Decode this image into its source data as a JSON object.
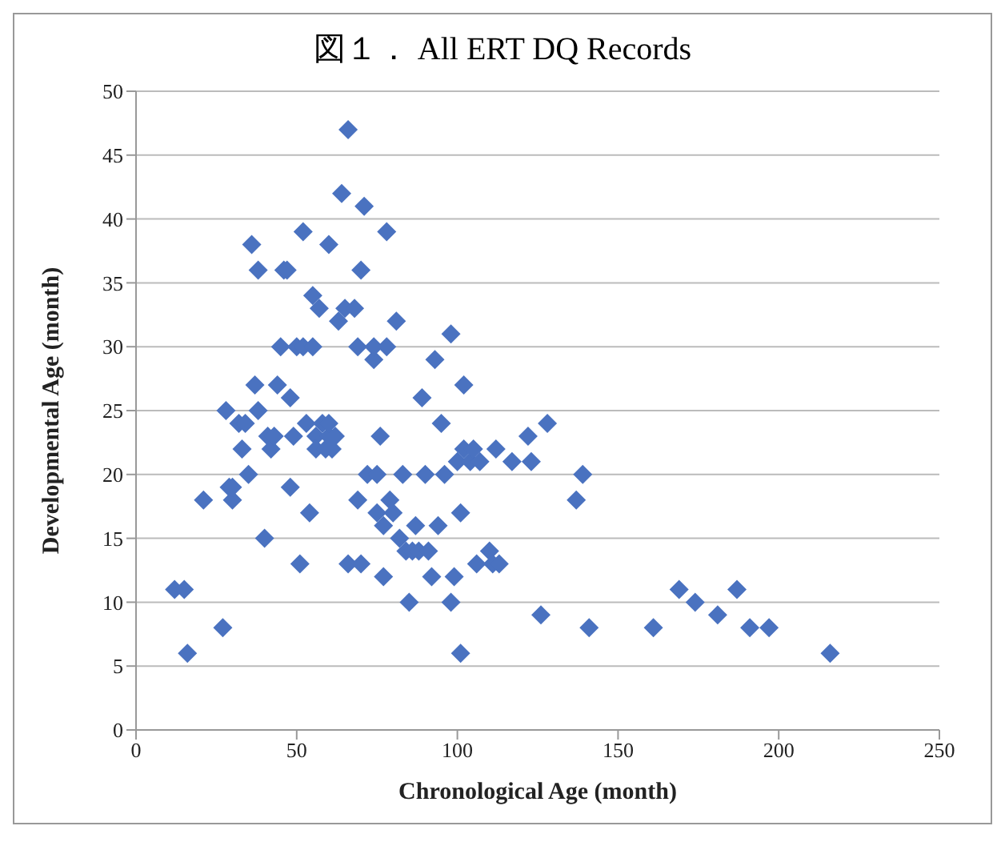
{
  "chart_data": {
    "type": "scatter",
    "title": "図１． All ERT DQ Records",
    "xlabel": "Chronological Age (month)",
    "ylabel": "Developmental Age (month)",
    "xlim": [
      0,
      250
    ],
    "xticks": [
      0,
      50,
      100,
      150,
      200,
      250
    ],
    "ylim": [
      0,
      50
    ],
    "yticks": [
      0,
      5,
      10,
      15,
      20,
      25,
      30,
      35,
      40,
      45,
      50
    ],
    "grid": "y",
    "legend": false,
    "marker": "diamond",
    "series": [
      {
        "color": "#4a72c0",
        "x": [
          12,
          15,
          16,
          21,
          27,
          28,
          29,
          30,
          30,
          32,
          33,
          34,
          35,
          36,
          37,
          38,
          38,
          40,
          41,
          42,
          43,
          44,
          45,
          46,
          47,
          48,
          48,
          49,
          50,
          51,
          52,
          52,
          53,
          54,
          55,
          55,
          56,
          56,
          57,
          58,
          59,
          60,
          60,
          60,
          61,
          62,
          63,
          64,
          65,
          66,
          66,
          68,
          69,
          69,
          70,
          70,
          71,
          72,
          74,
          74,
          75,
          75,
          76,
          77,
          77,
          78,
          78,
          79,
          80,
          81,
          82,
          83,
          84,
          85,
          86,
          87,
          88,
          89,
          90,
          91,
          92,
          93,
          94,
          95,
          96,
          98,
          98,
          99,
          100,
          101,
          101,
          102,
          102,
          104,
          105,
          106,
          107,
          110,
          111,
          112,
          113,
          117,
          122,
          123,
          126,
          128,
          137,
          139,
          141,
          161,
          169,
          174,
          181,
          187,
          191,
          197,
          216
        ],
        "values": [
          11,
          11,
          6,
          18,
          8,
          25,
          19,
          18,
          19,
          24,
          22,
          24,
          20,
          38,
          27,
          36,
          25,
          15,
          23,
          22,
          23,
          27,
          30,
          36,
          36,
          26,
          19,
          23,
          30,
          13,
          39,
          30,
          24,
          17,
          34,
          30,
          23,
          22,
          33,
          24,
          22,
          23,
          24,
          38,
          22,
          23,
          32,
          42,
          33,
          47,
          13,
          33,
          30,
          18,
          36,
          13,
          41,
          20,
          29,
          30,
          20,
          17,
          23,
          16,
          12,
          30,
          39,
          18,
          17,
          32,
          15,
          20,
          14,
          10,
          14,
          16,
          14,
          26,
          20,
          14,
          12,
          29,
          16,
          24,
          20,
          10,
          31,
          12,
          21,
          6,
          17,
          27,
          22,
          21,
          22,
          13,
          21,
          14,
          13,
          22,
          13,
          21,
          23,
          21,
          9,
          24,
          18,
          20,
          8,
          8,
          11,
          10,
          9,
          11,
          8,
          8,
          6
        ]
      }
    ]
  }
}
